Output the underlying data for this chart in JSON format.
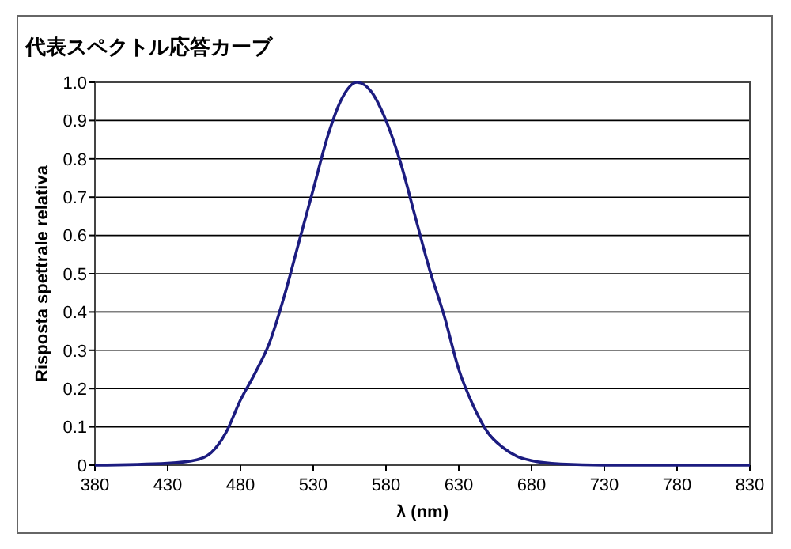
{
  "chart_data": {
    "type": "line",
    "title": "代表スペクトル応答カーブ",
    "xlabel": "λ (nm)",
    "ylabel": "Risposta spettrale relativa",
    "x": [
      380,
      430,
      450,
      460,
      470,
      480,
      490,
      500,
      510,
      520,
      530,
      540,
      550,
      560,
      570,
      580,
      590,
      600,
      610,
      620,
      630,
      640,
      650,
      660,
      670,
      680,
      700,
      730,
      830
    ],
    "series": [
      {
        "color": "#1c1c80",
        "values": [
          0,
          0.005,
          0.014,
          0.033,
          0.085,
          0.17,
          0.24,
          0.32,
          0.44,
          0.58,
          0.72,
          0.86,
          0.96,
          1.0,
          0.975,
          0.9,
          0.79,
          0.65,
          0.51,
          0.39,
          0.25,
          0.155,
          0.085,
          0.047,
          0.023,
          0.012,
          0.003,
          0,
          0
        ]
      }
    ],
    "xlim": [
      380,
      830
    ],
    "xticks": [
      380,
      430,
      480,
      530,
      580,
      630,
      680,
      730,
      780,
      830
    ],
    "ylim": [
      0,
      1
    ],
    "yticks": [
      0,
      {
        "value": 0.1,
        "label": "0.1"
      },
      {
        "value": 0.2,
        "label": "0.2"
      },
      {
        "value": 0.3,
        "label": "0.3"
      },
      {
        "value": 0.4,
        "label": "0.4"
      },
      {
        "value": 0.5,
        "label": "0.5"
      },
      {
        "value": 0.6,
        "label": "0.6"
      },
      {
        "value": 0.7,
        "label": "0.7"
      },
      {
        "value": 0.8,
        "label": "0.8"
      },
      {
        "value": 0.9,
        "label": "0.9"
      },
      {
        "value": 1,
        "label": "1.0"
      }
    ],
    "grid": "y",
    "marker": "none",
    "line_style": "solid"
  }
}
